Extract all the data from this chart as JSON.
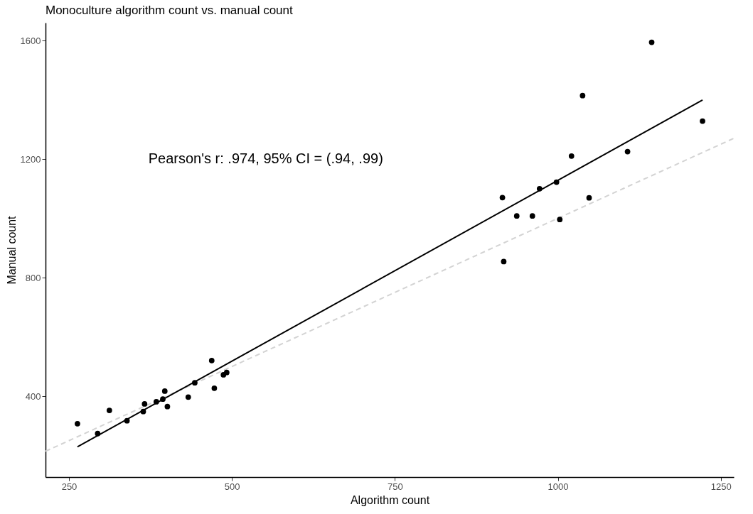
{
  "chart_data": {
    "type": "scatter",
    "title": "Monoculture algorithm count vs. manual count",
    "xlabel": "Algorithm count",
    "ylabel": "Manual count",
    "annotations": [
      "Pearson's r: .974, 95% CI = (.94, .99)"
    ],
    "xlim": [
      214,
      1270
    ],
    "ylim": [
      127,
      1660
    ],
    "xticks": [
      250,
      500,
      750,
      1000,
      1250
    ],
    "yticks": [
      400,
      800,
      1200,
      1600
    ],
    "grid": false,
    "series": [
      {
        "type": "line",
        "color": "#d3d3d3",
        "line_style": "dashed",
        "marker": "none",
        "x": [
          214,
          1270
        ],
        "values": [
          214,
          1270
        ]
      },
      {
        "type": "line",
        "color": "#000000",
        "line_style": "solid",
        "marker": "none",
        "x": [
          263,
          1222
        ],
        "values": [
          229,
          1399
        ]
      },
      {
        "type": "scatter",
        "color": "#000000",
        "marker": "circle",
        "x": [
          263,
          294,
          312,
          339,
          364,
          366,
          384,
          394,
          397,
          401,
          433,
          443,
          469,
          473,
          487,
          492,
          915,
          917,
          937,
          961,
          972,
          998,
          1003,
          1048,
          1021,
          1107,
          1038,
          1144,
          1222
        ],
        "values": [
          307,
          274,
          352,
          317,
          348,
          374,
          381,
          390,
          417,
          365,
          397,
          445,
          520,
          427,
          472,
          480,
          1070,
          854,
          1008,
          1008,
          1100,
          1122,
          996,
          1069,
          1210,
          1225,
          1414,
          1594,
          1328
        ]
      }
    ]
  }
}
